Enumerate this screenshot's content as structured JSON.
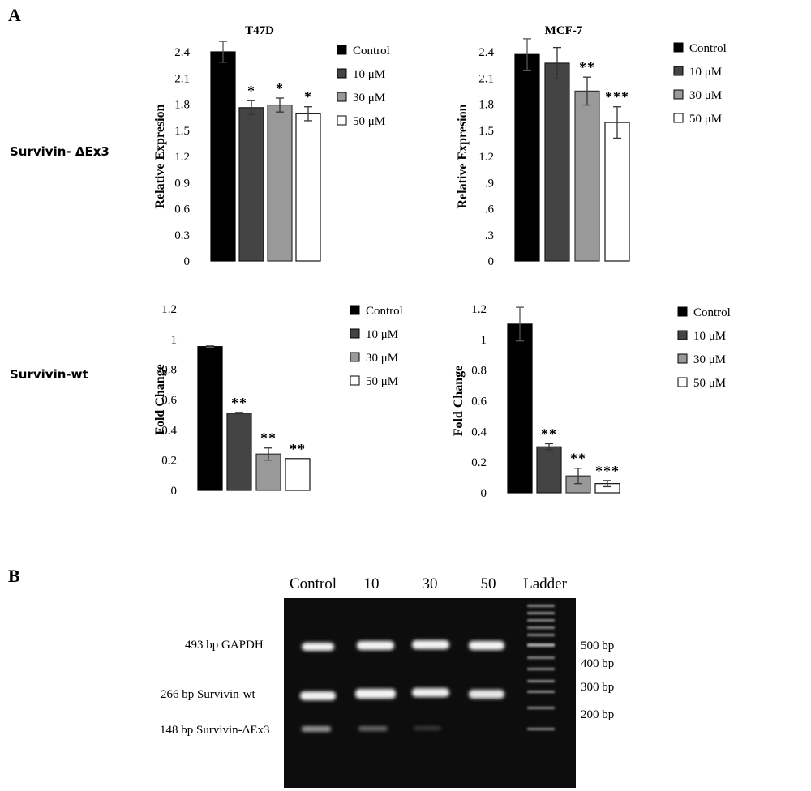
{
  "panels": {
    "a_label": "A",
    "b_label": "B"
  },
  "rows": {
    "dex3_label": "Survivin- ΔEx3",
    "wt_label": "Survivin-wt"
  },
  "legend_labels": [
    "Control",
    "10 μM",
    "30 μM",
    "50 μM"
  ],
  "colors": {
    "control": "#000000",
    "10uM": "#444444",
    "30uM": "#999999",
    "50uM": "#ffffff"
  },
  "chart_data": [
    {
      "type": "bar",
      "title": "T47D",
      "ylabel": "Relative Expresion",
      "categories": [
        "Control",
        "10 μM",
        "30 μM",
        "50 μM"
      ],
      "values": [
        2.4,
        1.76,
        1.79,
        1.69
      ],
      "errors": [
        0.12,
        0.08,
        0.08,
        0.08
      ],
      "significance": [
        "",
        "*",
        "*",
        "*"
      ],
      "ylim": [
        0,
        2.4
      ],
      "yticks": [
        "0",
        "0.3",
        "0.6",
        "0.9",
        "1.2",
        "1.5",
        "1.8",
        "2.1",
        "2.4"
      ],
      "legend": "right"
    },
    {
      "type": "bar",
      "title": "MCF-7",
      "ylabel": "Relative Expresion",
      "categories": [
        "Control",
        "10 μM",
        "30 μM",
        "50 μM"
      ],
      "values": [
        2.37,
        2.27,
        1.95,
        1.59
      ],
      "errors": [
        0.18,
        0.18,
        0.16,
        0.18
      ],
      "significance": [
        "",
        "",
        "**",
        "***"
      ],
      "ylim": [
        0,
        2.4
      ],
      "yticks": [
        "0",
        ".3",
        ".6",
        ".9",
        "1.2",
        "1.5",
        "1.8",
        "2.1",
        "2.4"
      ],
      "legend": "right"
    },
    {
      "type": "bar",
      "title": "",
      "ylabel": "Fold Change",
      "categories": [
        "Control",
        "10 μM",
        "30 μM",
        "50 μM"
      ],
      "values": [
        0.95,
        0.51,
        0.24,
        0.21
      ],
      "errors": [
        0.005,
        0.005,
        0.04,
        0
      ],
      "significance": [
        "",
        "**",
        "**",
        "**"
      ],
      "ylim": [
        0,
        1.2
      ],
      "yticks": [
        "0",
        "0.2",
        "0.4",
        "0.6",
        "0.8",
        "1",
        "1.2"
      ],
      "legend": "right"
    },
    {
      "type": "bar",
      "title": "",
      "ylabel": "Fold Change",
      "categories": [
        "Control",
        "10 μM",
        "30 μM",
        "50 μM"
      ],
      "values": [
        1.1,
        0.3,
        0.11,
        0.06
      ],
      "errors": [
        0.11,
        0.02,
        0.05,
        0.02
      ],
      "significance": [
        "",
        "**",
        "**",
        "***"
      ],
      "ylim": [
        0,
        1.2
      ],
      "yticks": [
        "0",
        "0.2",
        "0.4",
        "0.6",
        "0.8",
        "1",
        "1.2"
      ],
      "legend": "right"
    }
  ],
  "gel": {
    "lane_labels": [
      "Control",
      "10",
      "30",
      "50",
      "Ladder"
    ],
    "left_labels": [
      "493 bp GAPDH",
      "266 bp  Survivin-wt",
      "148 bp Survivin-ΔEx3"
    ],
    "right_labels": [
      "500 bp",
      "400 bp",
      "300 bp",
      "200 bp"
    ]
  }
}
